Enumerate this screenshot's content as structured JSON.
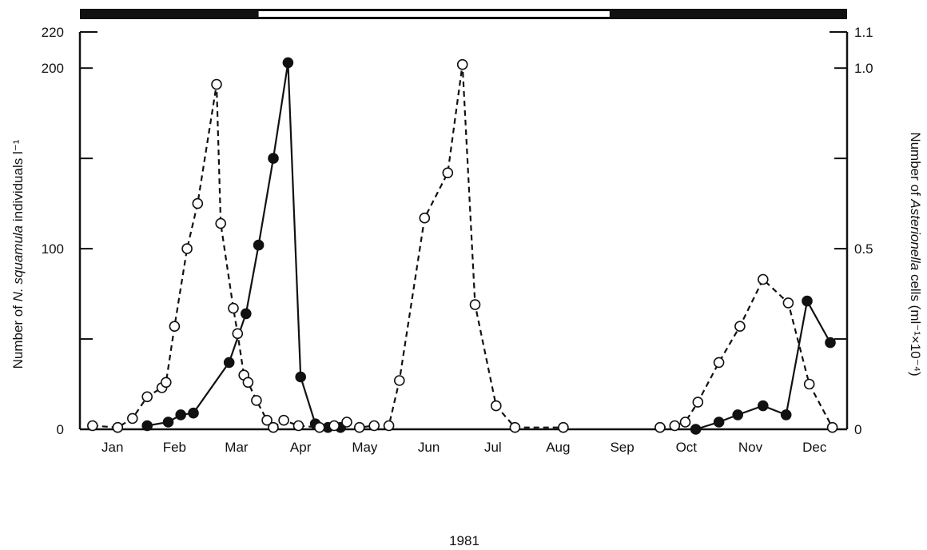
{
  "chart_data": {
    "type": "line",
    "xlabel": "1981",
    "months": [
      "Jan",
      "Feb",
      "Mar",
      "Apr",
      "May",
      "Jun",
      "Jul",
      "Aug",
      "Sep",
      "Oct",
      "Nov",
      "Dec"
    ],
    "ylabel_left": {
      "pre": "Number of ",
      "italic": "N. squamula",
      "post": " individuals l⁻¹"
    },
    "ylabel_right": {
      "pre": "Number of ",
      "italic": "Asterionella",
      "post": " cells (ml⁻¹×10⁻⁴)"
    },
    "ylim_left": [
      0,
      220
    ],
    "ylim_right": [
      0,
      1.1
    ],
    "yticks_left": [
      0,
      100,
      200,
      220
    ],
    "yticks_right": [
      0,
      0.5,
      1.0,
      1.1
    ],
    "yticks_left_labels": [
      "0",
      "100",
      "200",
      "220"
    ],
    "yticks_right_labels": [
      "0",
      "0.5",
      "1.0",
      "1.1"
    ],
    "light_dark_bar": {
      "dark_until_day": 85,
      "light_from_day": 85,
      "light_until_day": 252
    },
    "grid": false,
    "series": [
      {
        "marker": "filled-circle",
        "line": "solid",
        "axis": "left",
        "points": [
          [
            32,
            2
          ],
          [
            42,
            4
          ],
          [
            48,
            8
          ],
          [
            54,
            9
          ],
          [
            71,
            37
          ],
          [
            79,
            64
          ],
          [
            85,
            102
          ],
          [
            92,
            150
          ],
          [
            99,
            203
          ],
          [
            105,
            29
          ],
          [
            112,
            3
          ],
          [
            118,
            1
          ],
          [
            124,
            1
          ],
          [
            293,
            0
          ],
          [
            304,
            4
          ],
          [
            313,
            8
          ],
          [
            325,
            13
          ],
          [
            336,
            8
          ],
          [
            346,
            71
          ],
          [
            357,
            48
          ]
        ]
      },
      {
        "marker": "open-circle",
        "line": "dashed",
        "axis": "left",
        "points": [
          [
            6,
            2
          ],
          [
            18,
            1
          ],
          [
            25,
            6
          ],
          [
            32,
            18
          ],
          [
            39,
            23
          ],
          [
            41,
            26
          ],
          [
            45,
            57
          ],
          [
            51,
            100
          ],
          [
            56,
            125
          ],
          [
            65,
            191
          ],
          [
            67,
            114
          ],
          [
            73,
            67
          ],
          [
            75,
            53
          ],
          [
            78,
            30
          ],
          [
            80,
            26
          ],
          [
            84,
            16
          ],
          [
            89,
            5
          ],
          [
            92,
            1
          ],
          [
            97,
            5
          ],
          [
            104,
            2
          ],
          [
            114,
            1
          ],
          [
            121,
            2
          ],
          [
            127,
            4
          ],
          [
            133,
            1
          ],
          [
            140,
            2
          ],
          [
            147,
            2
          ],
          [
            152,
            27
          ],
          [
            164,
            117
          ],
          [
            175,
            142
          ],
          [
            182,
            202
          ],
          [
            188,
            69
          ],
          [
            198,
            13
          ],
          [
            207,
            1
          ],
          [
            230,
            1
          ],
          [
            276,
            1
          ],
          [
            283,
            2
          ],
          [
            288,
            4
          ],
          [
            294,
            15
          ],
          [
            304,
            37
          ],
          [
            314,
            57
          ],
          [
            325,
            83
          ],
          [
            337,
            70
          ],
          [
            347,
            25
          ],
          [
            358,
            1
          ]
        ]
      }
    ]
  }
}
